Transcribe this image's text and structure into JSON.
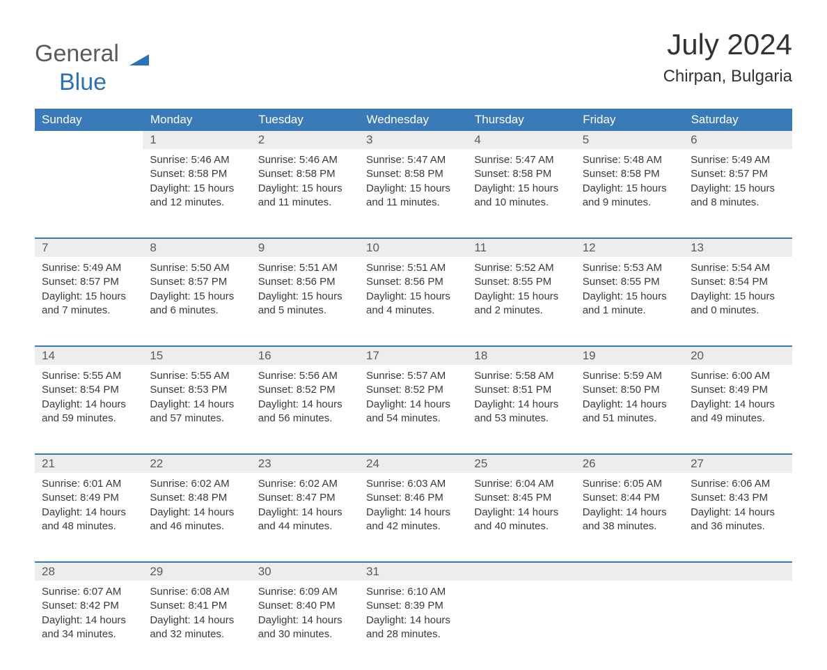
{
  "logo": {
    "text_general": "General",
    "text_blue": "Blue",
    "triangle_color": "#2a71b8"
  },
  "title": "July 2024",
  "location": "Chirpan, Bulgaria",
  "colors": {
    "header_bg": "#3a7ab8",
    "header_text": "#ffffff",
    "daynum_bg": "#ededed",
    "week_divider": "#3a7ab8",
    "body_text": "#3a3a3a",
    "page_bg": "#ffffff"
  },
  "fonts": {
    "title_pt": 42,
    "location_pt": 24,
    "dayhead_pt": 17,
    "body_pt": 15
  },
  "day_headers": [
    "Sunday",
    "Monday",
    "Tuesday",
    "Wednesday",
    "Thursday",
    "Friday",
    "Saturday"
  ],
  "weeks": [
    [
      null,
      {
        "n": "1",
        "sr": "Sunrise: 5:46 AM",
        "ss": "Sunset: 8:58 PM",
        "d1": "Daylight: 15 hours",
        "d2": "and 12 minutes."
      },
      {
        "n": "2",
        "sr": "Sunrise: 5:46 AM",
        "ss": "Sunset: 8:58 PM",
        "d1": "Daylight: 15 hours",
        "d2": "and 11 minutes."
      },
      {
        "n": "3",
        "sr": "Sunrise: 5:47 AM",
        "ss": "Sunset: 8:58 PM",
        "d1": "Daylight: 15 hours",
        "d2": "and 11 minutes."
      },
      {
        "n": "4",
        "sr": "Sunrise: 5:47 AM",
        "ss": "Sunset: 8:58 PM",
        "d1": "Daylight: 15 hours",
        "d2": "and 10 minutes."
      },
      {
        "n": "5",
        "sr": "Sunrise: 5:48 AM",
        "ss": "Sunset: 8:58 PM",
        "d1": "Daylight: 15 hours",
        "d2": "and 9 minutes."
      },
      {
        "n": "6",
        "sr": "Sunrise: 5:49 AM",
        "ss": "Sunset: 8:57 PM",
        "d1": "Daylight: 15 hours",
        "d2": "and 8 minutes."
      }
    ],
    [
      {
        "n": "7",
        "sr": "Sunrise: 5:49 AM",
        "ss": "Sunset: 8:57 PM",
        "d1": "Daylight: 15 hours",
        "d2": "and 7 minutes."
      },
      {
        "n": "8",
        "sr": "Sunrise: 5:50 AM",
        "ss": "Sunset: 8:57 PM",
        "d1": "Daylight: 15 hours",
        "d2": "and 6 minutes."
      },
      {
        "n": "9",
        "sr": "Sunrise: 5:51 AM",
        "ss": "Sunset: 8:56 PM",
        "d1": "Daylight: 15 hours",
        "d2": "and 5 minutes."
      },
      {
        "n": "10",
        "sr": "Sunrise: 5:51 AM",
        "ss": "Sunset: 8:56 PM",
        "d1": "Daylight: 15 hours",
        "d2": "and 4 minutes."
      },
      {
        "n": "11",
        "sr": "Sunrise: 5:52 AM",
        "ss": "Sunset: 8:55 PM",
        "d1": "Daylight: 15 hours",
        "d2": "and 2 minutes."
      },
      {
        "n": "12",
        "sr": "Sunrise: 5:53 AM",
        "ss": "Sunset: 8:55 PM",
        "d1": "Daylight: 15 hours",
        "d2": "and 1 minute."
      },
      {
        "n": "13",
        "sr": "Sunrise: 5:54 AM",
        "ss": "Sunset: 8:54 PM",
        "d1": "Daylight: 15 hours",
        "d2": "and 0 minutes."
      }
    ],
    [
      {
        "n": "14",
        "sr": "Sunrise: 5:55 AM",
        "ss": "Sunset: 8:54 PM",
        "d1": "Daylight: 14 hours",
        "d2": "and 59 minutes."
      },
      {
        "n": "15",
        "sr": "Sunrise: 5:55 AM",
        "ss": "Sunset: 8:53 PM",
        "d1": "Daylight: 14 hours",
        "d2": "and 57 minutes."
      },
      {
        "n": "16",
        "sr": "Sunrise: 5:56 AM",
        "ss": "Sunset: 8:52 PM",
        "d1": "Daylight: 14 hours",
        "d2": "and 56 minutes."
      },
      {
        "n": "17",
        "sr": "Sunrise: 5:57 AM",
        "ss": "Sunset: 8:52 PM",
        "d1": "Daylight: 14 hours",
        "d2": "and 54 minutes."
      },
      {
        "n": "18",
        "sr": "Sunrise: 5:58 AM",
        "ss": "Sunset: 8:51 PM",
        "d1": "Daylight: 14 hours",
        "d2": "and 53 minutes."
      },
      {
        "n": "19",
        "sr": "Sunrise: 5:59 AM",
        "ss": "Sunset: 8:50 PM",
        "d1": "Daylight: 14 hours",
        "d2": "and 51 minutes."
      },
      {
        "n": "20",
        "sr": "Sunrise: 6:00 AM",
        "ss": "Sunset: 8:49 PM",
        "d1": "Daylight: 14 hours",
        "d2": "and 49 minutes."
      }
    ],
    [
      {
        "n": "21",
        "sr": "Sunrise: 6:01 AM",
        "ss": "Sunset: 8:49 PM",
        "d1": "Daylight: 14 hours",
        "d2": "and 48 minutes."
      },
      {
        "n": "22",
        "sr": "Sunrise: 6:02 AM",
        "ss": "Sunset: 8:48 PM",
        "d1": "Daylight: 14 hours",
        "d2": "and 46 minutes."
      },
      {
        "n": "23",
        "sr": "Sunrise: 6:02 AM",
        "ss": "Sunset: 8:47 PM",
        "d1": "Daylight: 14 hours",
        "d2": "and 44 minutes."
      },
      {
        "n": "24",
        "sr": "Sunrise: 6:03 AM",
        "ss": "Sunset: 8:46 PM",
        "d1": "Daylight: 14 hours",
        "d2": "and 42 minutes."
      },
      {
        "n": "25",
        "sr": "Sunrise: 6:04 AM",
        "ss": "Sunset: 8:45 PM",
        "d1": "Daylight: 14 hours",
        "d2": "and 40 minutes."
      },
      {
        "n": "26",
        "sr": "Sunrise: 6:05 AM",
        "ss": "Sunset: 8:44 PM",
        "d1": "Daylight: 14 hours",
        "d2": "and 38 minutes."
      },
      {
        "n": "27",
        "sr": "Sunrise: 6:06 AM",
        "ss": "Sunset: 8:43 PM",
        "d1": "Daylight: 14 hours",
        "d2": "and 36 minutes."
      }
    ],
    [
      {
        "n": "28",
        "sr": "Sunrise: 6:07 AM",
        "ss": "Sunset: 8:42 PM",
        "d1": "Daylight: 14 hours",
        "d2": "and 34 minutes."
      },
      {
        "n": "29",
        "sr": "Sunrise: 6:08 AM",
        "ss": "Sunset: 8:41 PM",
        "d1": "Daylight: 14 hours",
        "d2": "and 32 minutes."
      },
      {
        "n": "30",
        "sr": "Sunrise: 6:09 AM",
        "ss": "Sunset: 8:40 PM",
        "d1": "Daylight: 14 hours",
        "d2": "and 30 minutes."
      },
      {
        "n": "31",
        "sr": "Sunrise: 6:10 AM",
        "ss": "Sunset: 8:39 PM",
        "d1": "Daylight: 14 hours",
        "d2": "and 28 minutes."
      },
      null,
      null,
      null
    ]
  ]
}
